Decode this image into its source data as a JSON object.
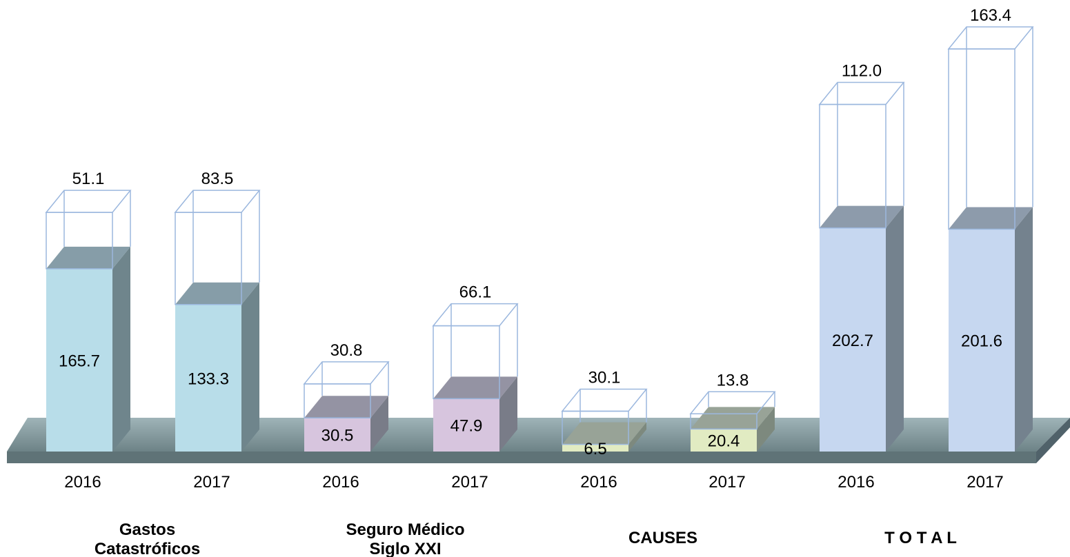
{
  "chart_data": {
    "type": "bar",
    "stacked": true,
    "three_d": true,
    "title": "",
    "xlabel": "",
    "ylabel": "",
    "grid": false,
    "legend": "none",
    "groups": [
      {
        "name_lines": [
          "Gastos",
          "Catastróficos"
        ],
        "fill_color": "#b8dde9",
        "bars": [
          {
            "year": "2016",
            "filled": "165.7",
            "outline": "51.1",
            "filled_value": 165.7,
            "outline_value": 51.1
          },
          {
            "year": "2017",
            "filled": "133.3",
            "outline": "83.5",
            "filled_value": 133.3,
            "outline_value": 83.5
          }
        ]
      },
      {
        "name_lines": [
          "Seguro Médico",
          "Siglo XXI"
        ],
        "fill_color": "#d7c5de",
        "bars": [
          {
            "year": "2016",
            "filled": "30.5",
            "outline": "30.8",
            "filled_value": 30.5,
            "outline_value": 30.8
          },
          {
            "year": "2017",
            "filled": "47.9",
            "outline": "66.1",
            "filled_value": 47.9,
            "outline_value": 66.1
          }
        ]
      },
      {
        "name_lines": [
          "CAUSES"
        ],
        "fill_color": "#e1ebc2",
        "bars": [
          {
            "year": "2016",
            "filled": "6.5",
            "outline": "30.1",
            "filled_value": 6.5,
            "outline_value": 30.1
          },
          {
            "year": "2017",
            "filled": "20.4",
            "outline": "13.8",
            "filled_value": 20.4,
            "outline_value": 13.8
          }
        ]
      },
      {
        "name_lines": [
          "T O T A L"
        ],
        "fill_color": "#c6d7f0",
        "bars": [
          {
            "year": "2016",
            "filled": "202.7",
            "outline": "112.0",
            "filled_value": 202.7,
            "outline_value": 112.0
          },
          {
            "year": "2017",
            "filled": "201.6",
            "outline": "163.4",
            "filled_value": 201.6,
            "outline_value": 163.4
          }
        ]
      }
    ],
    "colors": {
      "floor_top": "#8fa3a8",
      "floor_front": "#6d7f84",
      "outline_stroke": "#9bb7de"
    }
  }
}
